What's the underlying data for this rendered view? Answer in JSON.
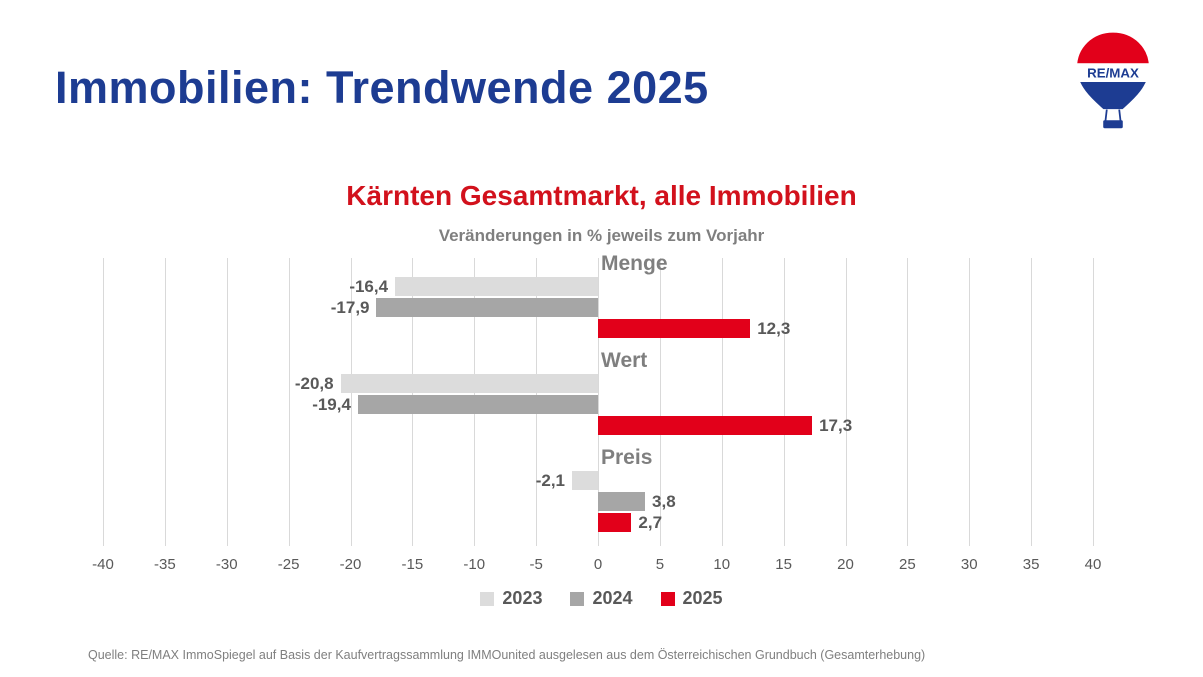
{
  "page": {
    "title": "Immobilien: Trendwende 2025",
    "source": "Quelle: RE/MAX ImmoSpiegel auf Basis der Kaufvertragssammlung IMMOunited ausgelesen aus dem Österreichischen Grundbuch (Gesamterhebung)"
  },
  "logo": {
    "brand": "RE/MAX"
  },
  "colors": {
    "brand_blue": "#1d3c92",
    "brand_red": "#d2111c",
    "bar_2023": "#dcdcdc",
    "bar_2024": "#a6a6a6",
    "bar_2025": "#e2001a",
    "gridline": "#d9d9d9",
    "label_gray": "#595959"
  },
  "chart_data": {
    "type": "bar",
    "orientation": "horizontal",
    "title": "Kärnten Gesamtmarkt, alle Immobilien",
    "subtitle": "Veränderungen in % jeweils zum Vorjahr",
    "categories": [
      "Menge",
      "Wert",
      "Preis"
    ],
    "series": [
      {
        "name": "2023",
        "color": "#dcdcdc",
        "values": [
          -16.4,
          -20.8,
          -2.1
        ],
        "labels": [
          "-16,4",
          "-20,8",
          "-2,1"
        ]
      },
      {
        "name": "2024",
        "color": "#a6a6a6",
        "values": [
          -17.9,
          -19.4,
          3.8
        ],
        "labels": [
          "-17,9",
          "-19,4",
          "3,8"
        ]
      },
      {
        "name": "2025",
        "color": "#e2001a",
        "values": [
          12.3,
          17.3,
          2.7
        ],
        "labels": [
          "12,3",
          "17,3",
          "2,7"
        ]
      }
    ],
    "xlim": [
      -40,
      40
    ],
    "ticks": [
      -40,
      -35,
      -30,
      -25,
      -20,
      -15,
      -10,
      -5,
      0,
      5,
      10,
      15,
      20,
      25,
      30,
      35,
      40
    ],
    "grid": true,
    "legend_position": "bottom"
  }
}
